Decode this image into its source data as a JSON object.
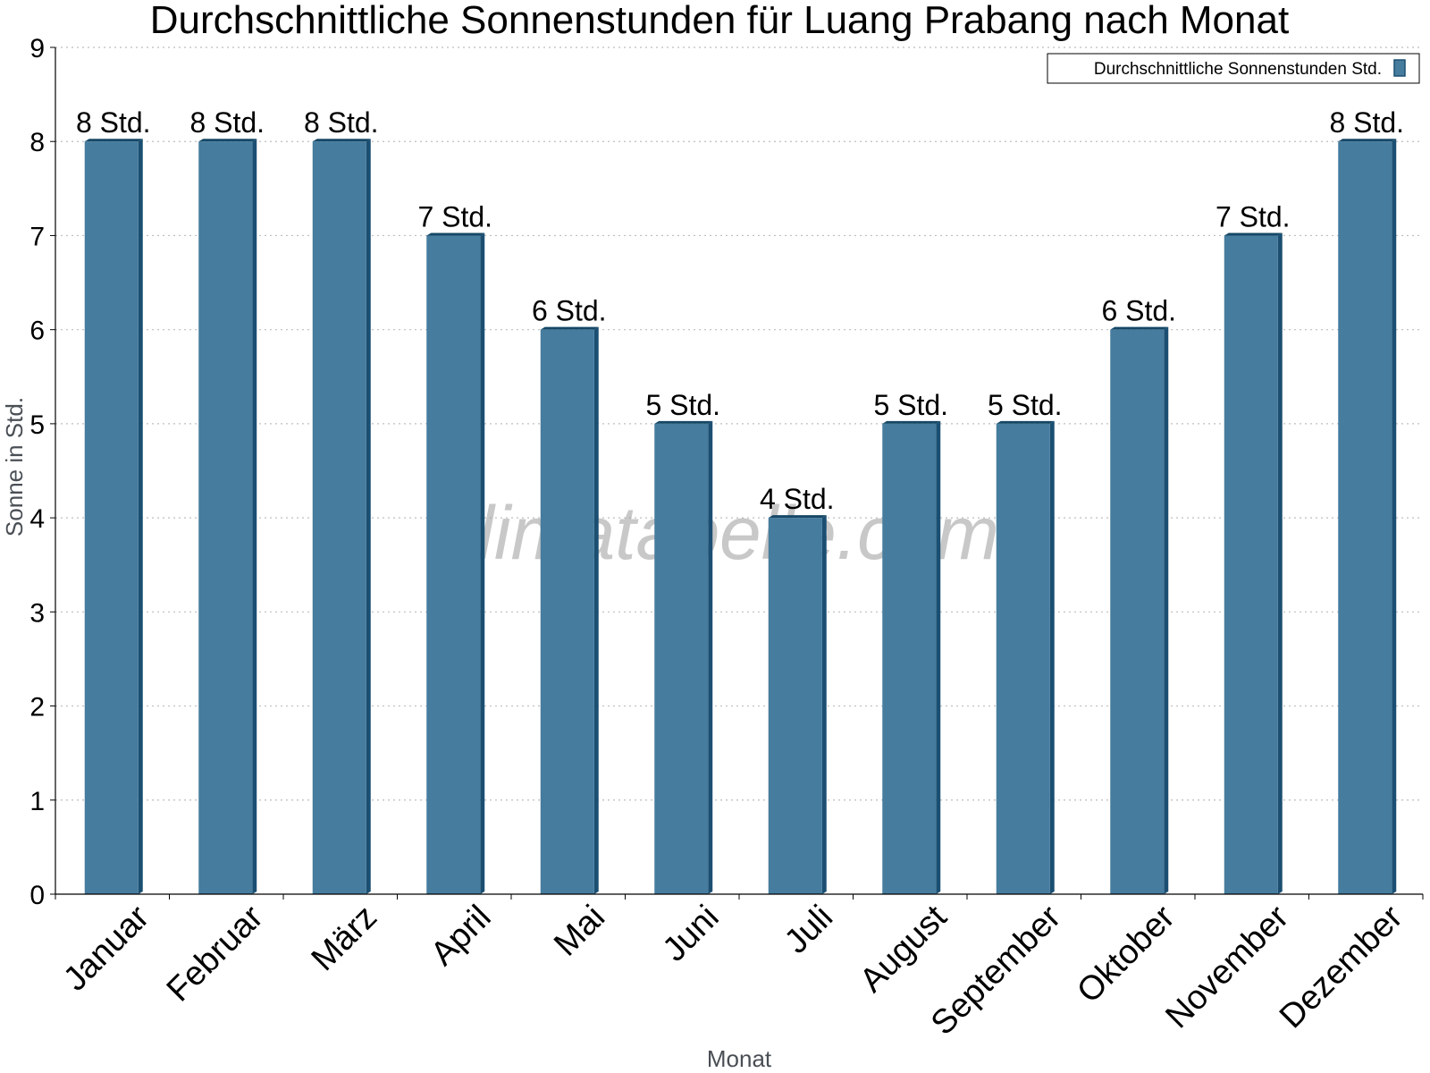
{
  "chart_data": {
    "type": "bar",
    "title": "Durchschnittliche Sonnenstunden für Luang Prabang nach Monat",
    "xlabel": "Monat",
    "ylabel": "Sonne in Std.",
    "categories": [
      "Januar",
      "Februar",
      "März",
      "April",
      "Mai",
      "Juni",
      "Juli",
      "August",
      "September",
      "Oktober",
      "November",
      "Dezember"
    ],
    "series": [
      {
        "name": "Durchschnittliche Sonnenstunden Std.",
        "values": [
          8,
          8,
          8,
          7,
          6,
          5,
          4,
          5,
          5,
          6,
          7,
          8
        ],
        "labels": [
          "8 Std.",
          "8 Std.",
          "8 Std.",
          "7 Std.",
          "6 Std.",
          "5 Std.",
          "4 Std.",
          "5 Std.",
          "5 Std.",
          "6 Std.",
          "7 Std.",
          "8 Std."
        ]
      }
    ],
    "ylim": [
      0,
      9
    ],
    "yticks": [
      "0",
      "1",
      "2",
      "3",
      "4",
      "5",
      "6",
      "7",
      "8",
      "9"
    ],
    "grid": true,
    "legend_position": "top-right",
    "colors": {
      "bar": "#467c9e",
      "bar_side": "#1b4f72",
      "bar_top": "#164866",
      "grid": "#bdbdbd"
    },
    "watermark": "klimatabelle.com"
  }
}
